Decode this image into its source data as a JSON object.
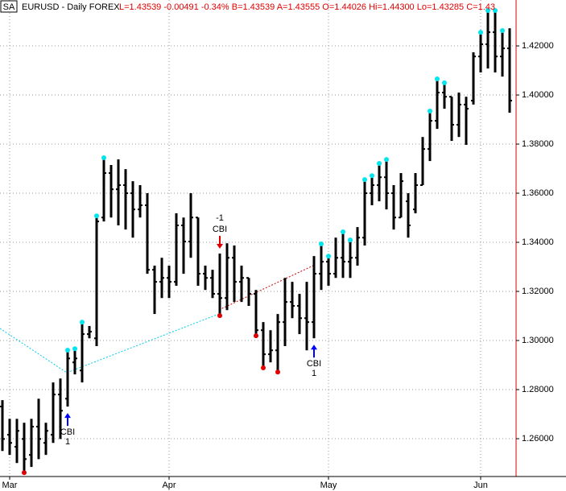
{
  "chart_data": {
    "type": "ohlc",
    "symbol": "SA",
    "title": "EURUSD - Daily  FOREX",
    "quote": "L=1.43539 -0.00491 -0.34% B=1.43539 A=1.43555 O=1.44026 Hi=1.44300 Lo=1.43285 C=1.43",
    "categories": [
      null,
      "Mar",
      null,
      null,
      null,
      null,
      null,
      null,
      null,
      null,
      null,
      null,
      null,
      null,
      null,
      null,
      null,
      null,
      null,
      null,
      null,
      null,
      null,
      "Apr",
      null,
      null,
      null,
      null,
      null,
      null,
      null,
      null,
      null,
      null,
      null,
      null,
      null,
      null,
      null,
      null,
      null,
      null,
      null,
      null,
      null,
      "May",
      null,
      null,
      null,
      null,
      null,
      null,
      null,
      null,
      null,
      null,
      null,
      null,
      null,
      null,
      null,
      null,
      null,
      null,
      null,
      null,
      "Jun",
      null,
      null,
      null,
      null
    ],
    "series": [
      {
        "color": "#000000",
        "open": [
          1.2731,
          1.2616,
          1.2567,
          1.2599,
          1.2534,
          1.2649,
          1.2583,
          1.2616,
          1.278,
          1.2763,
          1.2911,
          1.2878,
          1.3026,
          1.3009,
          1.3501,
          1.3682,
          1.3616,
          1.3633,
          1.36,
          1.3534,
          1.3551,
          1.3288,
          1.3239,
          1.3255,
          1.3239,
          1.3469,
          1.3403,
          1.3501,
          1.3272,
          1.3255,
          1.319,
          1.3173,
          1.3337,
          1.3239,
          1.3255,
          1.319,
          1.3042,
          1.2944,
          1.296,
          1.3075,
          1.3157,
          1.3141,
          1.3091,
          1.3075,
          1.3272,
          1.3321,
          1.3272,
          1.3337,
          1.3321,
          1.3337,
          1.3419,
          1.36,
          1.3633,
          1.3665,
          1.36,
          1.3501,
          1.3567,
          1.3534,
          1.3633,
          1.378,
          1.3895,
          1.401,
          1.3993,
          1.3879,
          1.3961,
          1.3977,
          1.4157,
          1.4207,
          1.4256,
          1.4157,
          1.419
        ],
        "high": [
          1.2757,
          1.2681,
          1.2681,
          1.2665,
          1.2681,
          1.2763,
          1.2665,
          1.2829,
          1.2845,
          1.2954,
          1.296,
          1.3068,
          1.3059,
          1.3501,
          1.3738,
          1.3715,
          1.3738,
          1.3698,
          1.3649,
          1.3633,
          1.36,
          1.3305,
          1.3337,
          1.3305,
          1.3518,
          1.3501,
          1.36,
          1.3501,
          1.3305,
          1.3288,
          1.3354,
          1.3396,
          1.3387,
          1.3305,
          1.3255,
          1.3206,
          1.3075,
          1.3042,
          1.3108,
          1.3255,
          1.3239,
          1.319,
          1.3239,
          1.3344,
          1.3387,
          1.3337,
          1.3419,
          1.3436,
          1.3403,
          1.3462,
          1.3649,
          1.3665,
          1.3715,
          1.3731,
          1.3633,
          1.3682,
          1.36,
          1.3682,
          1.3829,
          1.3928,
          1.4059,
          1.4043,
          1.3993,
          1.401,
          1.3993,
          1.4174,
          1.4249,
          1.4338,
          1.4338,
          1.4256,
          1.4272
        ],
        "low": [
          1.255,
          1.2534,
          1.2501,
          1.2468,
          1.2485,
          1.2517,
          1.2534,
          1.2583,
          1.2599,
          1.2731,
          1.2862,
          1.2829,
          1.3009,
          1.2977,
          1.3485,
          1.3501,
          1.3469,
          1.3452,
          1.3419,
          1.3501,
          1.3272,
          1.3108,
          1.3173,
          1.3173,
          1.3223,
          1.3272,
          1.3337,
          1.3223,
          1.3206,
          1.3173,
          1.3108,
          1.3124,
          1.3157,
          1.3157,
          1.3141,
          1.3026,
          1.2895,
          1.2911,
          1.2878,
          1.2977,
          1.3091,
          1.3026,
          1.296,
          1.3009,
          1.3206,
          1.3223,
          1.3255,
          1.3255,
          1.3255,
          1.3305,
          1.3387,
          1.3551,
          1.3567,
          1.3534,
          1.3452,
          1.3501,
          1.3419,
          1.3518,
          1.3633,
          1.3731,
          1.3862,
          1.3944,
          1.3813,
          1.3829,
          1.3797,
          1.3961,
          1.4092,
          1.4108,
          1.4092,
          1.4075,
          1.3928
        ],
        "close": [
          1.2599,
          1.2583,
          1.2632,
          1.2517,
          1.2649,
          1.2599,
          1.2632,
          1.278,
          1.2714,
          1.2927,
          1.2927,
          1.3026,
          1.3036,
          1.3485,
          1.3682,
          1.3616,
          1.3633,
          1.36,
          1.3534,
          1.3551,
          1.3288,
          1.3239,
          1.3255,
          1.3239,
          1.3469,
          1.3403,
          1.3501,
          1.3272,
          1.3255,
          1.319,
          1.3173,
          1.3337,
          1.3239,
          1.3255,
          1.319,
          1.3042,
          1.2944,
          1.296,
          1.3075,
          1.3157,
          1.3141,
          1.3091,
          1.3075,
          1.3272,
          1.3321,
          1.3272,
          1.3337,
          1.3321,
          1.3337,
          1.3419,
          1.36,
          1.3633,
          1.3665,
          1.36,
          1.3501,
          1.3649,
          1.3469,
          1.3633,
          1.378,
          1.3895,
          1.401,
          1.3993,
          1.3879,
          1.3961,
          1.3944,
          1.4157,
          1.4207,
          1.4256,
          1.4157,
          1.419,
          1.3977
        ]
      }
    ],
    "high_marker_color": "#00e5ee",
    "high_markers": [
      9,
      10,
      11,
      13,
      14,
      44,
      45,
      47,
      48,
      50,
      51,
      52,
      53,
      59,
      60,
      61,
      66,
      67,
      68,
      69
    ],
    "low_marker_color": "#e00000",
    "low_markers": [
      3,
      30,
      35,
      36,
      38
    ],
    "annotations": [
      {
        "label": "CBI",
        "count": 1,
        "bar": 9,
        "color": "#0000ff",
        "dir": "up"
      },
      {
        "label": "CBI",
        "count": -1,
        "bar": 30,
        "color": "#e00000",
        "dir": "down"
      },
      {
        "label": "CBI",
        "count": 1,
        "bar": 43,
        "color": "#0000ff",
        "dir": "up"
      }
    ],
    "ylim": [
      1.2446,
      1.4387
    ],
    "yticks": [
      {
        "value": 1.26,
        "label": "1.26000"
      },
      {
        "value": 1.28,
        "label": "1.28000"
      },
      {
        "value": 1.3,
        "label": "1.30000"
      },
      {
        "value": 1.32,
        "label": "1.32000"
      },
      {
        "value": 1.34,
        "label": "1.34000"
      },
      {
        "value": 1.36,
        "label": "1.36000"
      },
      {
        "value": 1.38,
        "label": "1.38000"
      },
      {
        "value": 1.4,
        "label": "1.40000"
      },
      {
        "value": 1.42,
        "label": "1.42000"
      }
    ],
    "grid": true
  }
}
